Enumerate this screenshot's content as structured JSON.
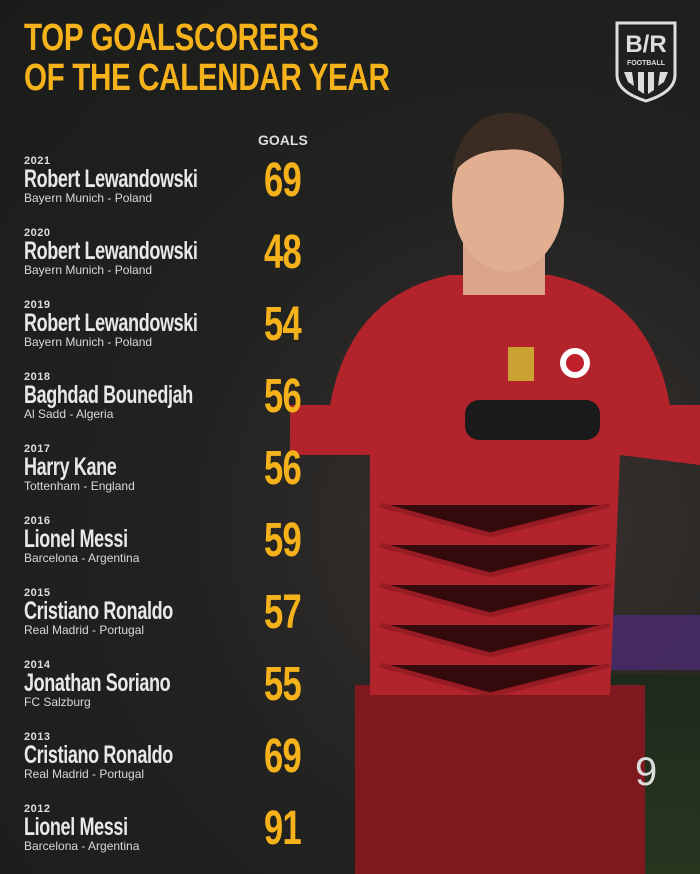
{
  "title_line1": "TOP GOALSCORERS",
  "title_line2": "OF THE CALENDAR YEAR",
  "logo": {
    "text": "B/R",
    "sub": "FOOTBALL"
  },
  "goals_header": "GOALS",
  "colors": {
    "accent": "#f6b21b",
    "background": "#1c1d1b"
  },
  "rows": [
    {
      "year": "2021",
      "name": "Robert Lewandowski",
      "club": "Bayern Munich - Poland",
      "goals": "69"
    },
    {
      "year": "2020",
      "name": "Robert Lewandowski",
      "club": "Bayern Munich - Poland",
      "goals": "48"
    },
    {
      "year": "2019",
      "name": "Robert Lewandowski",
      "club": "Bayern Munich - Poland",
      "goals": "54"
    },
    {
      "year": "2018",
      "name": "Baghdad Bounedjah",
      "club": "Al Sadd - Algeria",
      "goals": "56"
    },
    {
      "year": "2017",
      "name": "Harry Kane",
      "club": "Tottenham - England",
      "goals": "56"
    },
    {
      "year": "2016",
      "name": "Lionel Messi",
      "club": "Barcelona - Argentina",
      "goals": "59"
    },
    {
      "year": "2015",
      "name": "Cristiano Ronaldo",
      "club": "Real Madrid - Portugal",
      "goals": "57"
    },
    {
      "year": "2014",
      "name": "Jonathan Soriano",
      "club": "FC Salzburg",
      "goals": "55"
    },
    {
      "year": "2013",
      "name": "Cristiano Ronaldo",
      "club": "Real Madrid - Portugal",
      "goals": "69"
    },
    {
      "year": "2012",
      "name": "Lionel Messi",
      "club": "Barcelona - Argentina",
      "goals": "91"
    }
  ]
}
